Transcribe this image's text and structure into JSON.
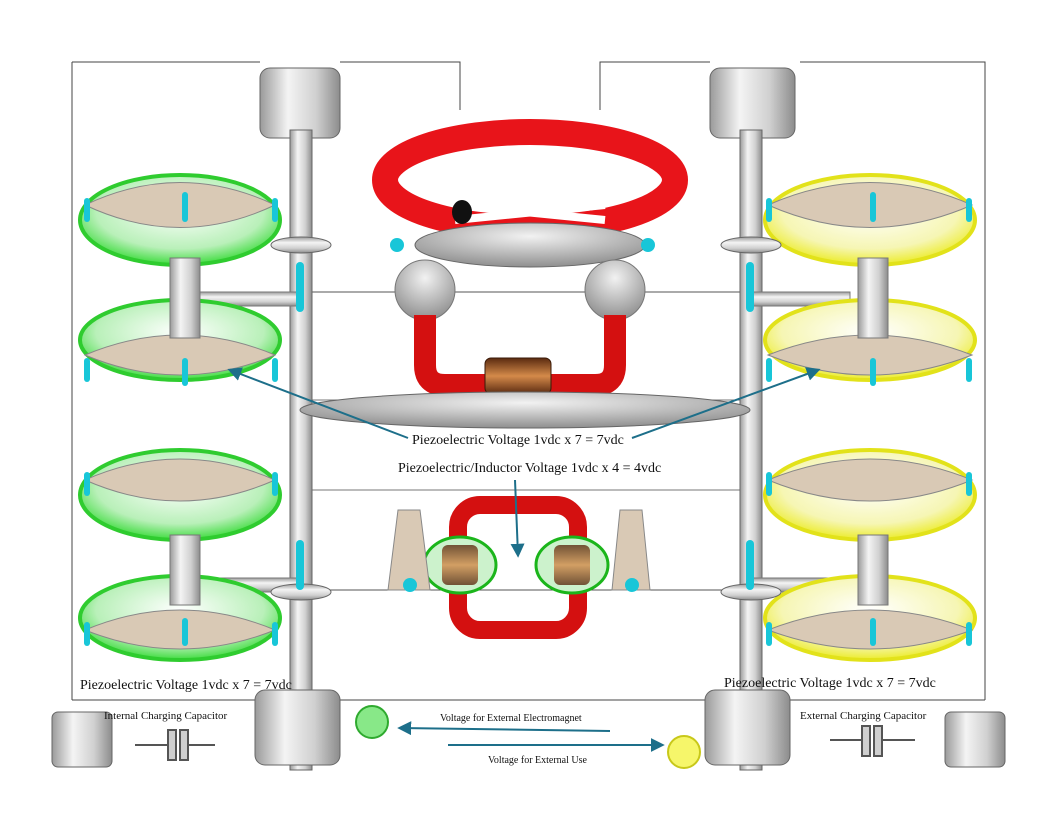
{
  "labels": {
    "piezo_center": "Piezoelectric Voltage 1vdc x 7 = 7vdc",
    "piezo_inductor": "Piezoelectric/Inductor Voltage 1vdc x 4 = 4vdc",
    "piezo_left": "Piezoelectric Voltage 1vdc x 7 = 7vdc",
    "piezo_right": "Piezoelectric Voltage 1vdc x 7 = 7vdc",
    "internal_capacitor": "Internal Charging Capacitor",
    "external_capacitor": "External Charging Capacitor",
    "voltage_electromagnet": "Voltage for External Electromagnet",
    "voltage_external_use": "Voltage for External Use"
  },
  "colors": {
    "green_disc": "#3fdc3f",
    "yellow_disc": "#ecec2a",
    "red": "#e8141a",
    "cyan": "#18c6d8",
    "arrow": "#1d6f8a",
    "metal": "#d8d8d8",
    "grey": "#bdbdbd"
  },
  "icons": {
    "left_led": "green-indicator-icon",
    "right_led": "yellow-indicator-icon",
    "inductor_coil": "copper-coil-icon",
    "capacitor": "capacitor-icon"
  }
}
